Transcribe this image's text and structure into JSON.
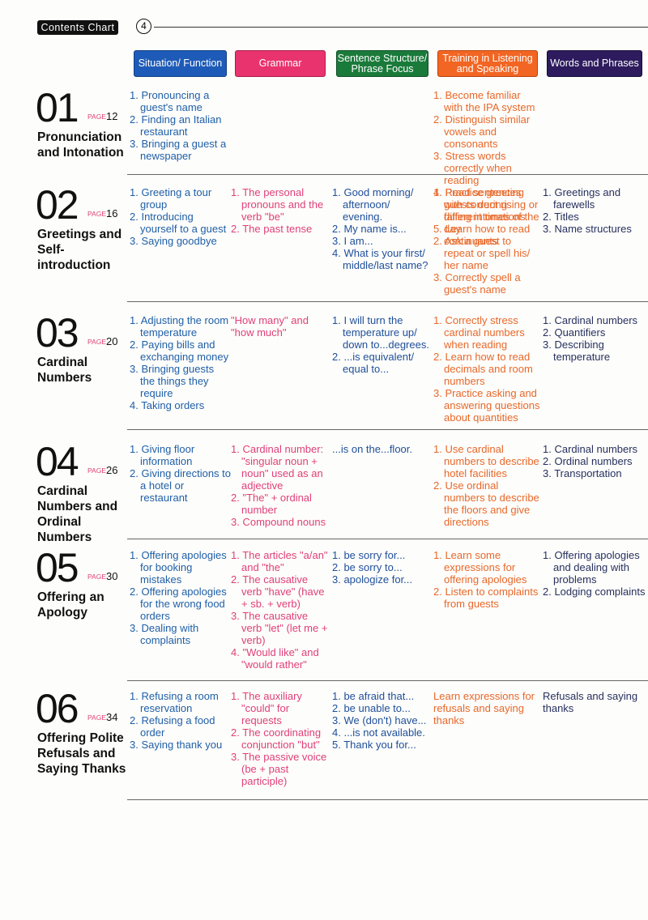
{
  "header": {
    "label": "Contents Chart",
    "page": "4"
  },
  "columns": [
    "Situation/ Function",
    "Grammar",
    "Sentence Structure/ Phrase Focus",
    "Training in Listening and Speaking",
    "Words and Phrases"
  ],
  "units": [
    {
      "number": "01",
      "page_label": "PAGE",
      "page": "12",
      "title": "Pronunciation and Intonation",
      "cells": [
        [
          "1. Pronouncing a guest's name",
          "2. Finding an Italian restaurant",
          "3. Bringing a guest a newspaper"
        ],
        [],
        [],
        [
          "1. Become familiar with the IPA system",
          "2. Distinguish similar vowels and consonants",
          "3. Stress words correctly when reading",
          "4. Read sentences with correct rising or falling intonations",
          "5. Learn how to read continuants"
        ],
        []
      ]
    },
    {
      "number": "02",
      "page_label": "PAGE",
      "page": "16",
      "title": "Greetings and Self-introduction",
      "cells": [
        [
          "1. Greeting a tour group",
          "2. Introducing yourself to a guest",
          "3. Saying goodbye"
        ],
        [
          "1. The personal pronouns and the verb \"be\"",
          "2. The past tense"
        ],
        [
          "1. Good morning/ afternoon/ evening.",
          "2. My name is...",
          "3. I am...",
          "4. What is your first/ middle/last name?"
        ],
        [
          "1. Practice greeting guests during different times of the day",
          "2. Ask a guest to repeat or spell his/ her name",
          "3. Correctly spell a guest's name"
        ],
        [
          "1. Greetings and farewells",
          "2. Titles",
          "3. Name structures"
        ]
      ]
    },
    {
      "number": "03",
      "page_label": "PAGE",
      "page": "20",
      "title": "Cardinal Numbers",
      "cells": [
        [
          "1. Adjusting the room temperature",
          "2. Paying bills and exchanging money",
          "3. Bringing guests the things they require",
          "4. Taking orders"
        ],
        [
          "\"How many\" and \"how much\""
        ],
        [
          "1. I will turn the temperature up/ down to...degrees.",
          "2. ...is equivalent/ equal to..."
        ],
        [
          "1. Correctly stress cardinal numbers when reading",
          "2. Learn how to read decimals and room numbers",
          "3. Practice asking and answering questions about quantities"
        ],
        [
          "1. Cardinal numbers",
          "2. Quantifiers",
          "3. Describing temperature"
        ]
      ]
    },
    {
      "number": "04",
      "page_label": "PAGE",
      "page": "26",
      "title": "Cardinal Numbers and Ordinal Numbers",
      "cells": [
        [
          "1. Giving floor information",
          "2. Giving directions to a hotel or restaurant"
        ],
        [
          "1. Cardinal number: \"singular noun + noun\" used as an adjective",
          "2. \"The\" + ordinal number",
          "3. Compound nouns"
        ],
        [
          "...is on the...floor."
        ],
        [
          "1. Use cardinal numbers to describe hotel facilities",
          "2. Use ordinal numbers to describe the floors and give directions"
        ],
        [
          "1. Cardinal numbers",
          "2. Ordinal numbers",
          "3. Transportation"
        ]
      ]
    },
    {
      "number": "05",
      "page_label": "PAGE",
      "page": "30",
      "title": "Offering an Apology",
      "cells": [
        [
          "1. Offering apologies for booking mistakes",
          "2. Offering apologies for the wrong food orders",
          "3. Dealing with complaints"
        ],
        [
          "1. The articles \"a/an\" and \"the\"",
          "2. The causative verb \"have\" (have + sb. + verb)",
          "3. The causative verb \"let\" (let me + verb)",
          "4. \"Would like\" and \"would rather\""
        ],
        [
          "1. be sorry for...",
          "2. be sorry to...",
          "3. apologize for..."
        ],
        [
          "1. Learn some expressions for offering apologies",
          "2. Listen to complaints from guests"
        ],
        [
          "1. Offering apologies and dealing with problems",
          "2. Lodging complaints"
        ]
      ]
    },
    {
      "number": "06",
      "page_label": "PAGE",
      "page": "34",
      "title": "Offering Polite Refusals and Saying Thanks",
      "cells": [
        [
          "1. Refusing a room reservation",
          "2. Refusing a food order",
          "3. Saying thank you"
        ],
        [
          "1. The auxiliary \"could\" for requests",
          "2. The coordinating conjunction \"but\"",
          "3. The passive voice (be + past participle)"
        ],
        [
          "1. be afraid that...",
          "2. be unable to...",
          "3. We (don't) have...",
          "4. ...is not available.",
          "5. Thank you for..."
        ],
        [
          "Learn expressions for refusals and saying thanks"
        ],
        [
          "Refusals and saying thanks"
        ]
      ]
    }
  ]
}
